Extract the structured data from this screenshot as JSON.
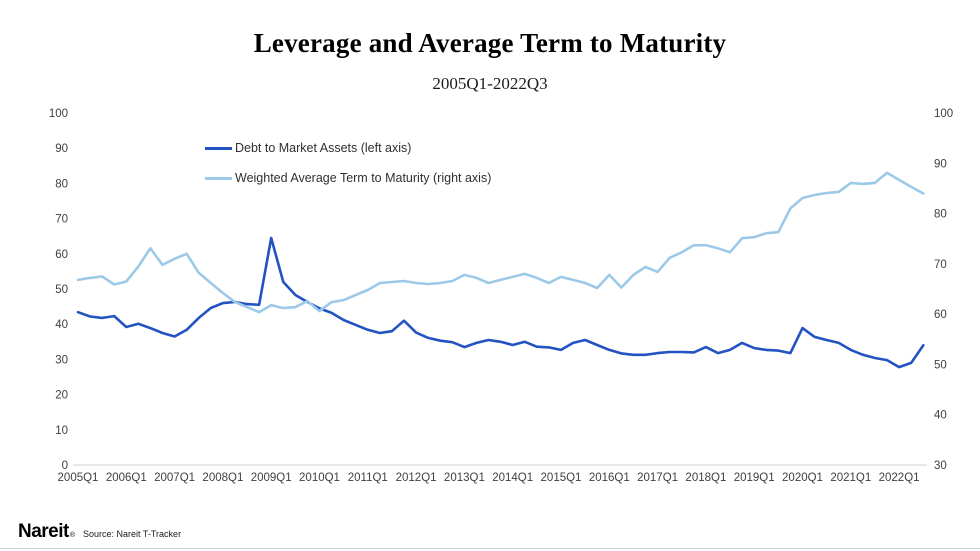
{
  "title": "Leverage and Average Term to Maturity",
  "subtitle": "2005Q1-2022Q3",
  "legend": [
    {
      "label": "Debt to Market Assets (left axis)",
      "color": "#2352C2"
    },
    {
      "label": "Weighted Average Term to Maturity (right axis)",
      "color": "#9DC9E8"
    }
  ],
  "footer": {
    "logo": "Nareit",
    "registered": "®",
    "source": "Source: Nareit T-Tracker"
  },
  "chart_data": {
    "type": "line",
    "frequency": "quarterly",
    "x_first": "2005Q1",
    "x_last": "2022Q3",
    "x_labels": [
      "2005Q1",
      "2006Q1",
      "2007Q1",
      "2008Q1",
      "2009Q1",
      "2010Q1",
      "2011Q1",
      "2012Q1",
      "2013Q1",
      "2014Q1",
      "2015Q1",
      "2016Q1",
      "2017Q1",
      "2018Q1",
      "2019Q1",
      "2020Q1",
      "2021Q1",
      "2022Q1"
    ],
    "left_axis": {
      "min": 0,
      "max": 100,
      "step": 10,
      "ticks": [
        0,
        10,
        20,
        30,
        40,
        50,
        60,
        70,
        80,
        90,
        100
      ]
    },
    "right_axis": {
      "min": 30,
      "max": 100,
      "step": 10,
      "ticks": [
        30,
        40,
        50,
        60,
        70,
        80,
        90,
        100
      ]
    },
    "grid": false,
    "legend_position": "top-left",
    "series": [
      {
        "name": "Debt to Market Assets",
        "axis": "left",
        "color": "#2352C2",
        "values": [
          43.4,
          42.2,
          41.8,
          42.3,
          39.2,
          40.1,
          38.9,
          37.5,
          36.5,
          38.4,
          41.8,
          44.6,
          46.0,
          46.3,
          45.7,
          45.5,
          64.5,
          52.0,
          48.3,
          46.3,
          44.5,
          43.2,
          41.2,
          39.8,
          38.4,
          37.5,
          38.0,
          41.0,
          37.6,
          36.1,
          35.3,
          34.9,
          33.5,
          34.7,
          35.5,
          35.0,
          34.1,
          35.0,
          33.6,
          33.4,
          32.7,
          34.7,
          35.5,
          34.1,
          32.7,
          31.7,
          31.3,
          31.3,
          31.8,
          32.1,
          32.1,
          32.0,
          33.5,
          31.8,
          32.7,
          34.7,
          33.2,
          32.7,
          32.5,
          31.8,
          38.9,
          36.4,
          35.5,
          34.7,
          32.7,
          31.3,
          30.4,
          29.8,
          27.8,
          29.0,
          34.0
        ]
      },
      {
        "name": "Weighted Average Term to Maturity",
        "axis": "right",
        "color": "#9DC9E8",
        "values": [
          66.8,
          67.2,
          67.5,
          65.9,
          66.5,
          69.5,
          73.1,
          69.8,
          71.0,
          72.0,
          68.2,
          66.2,
          64.2,
          62.4,
          61.4,
          60.4,
          61.8,
          61.2,
          61.4,
          62.6,
          60.6,
          62.4,
          62.8,
          63.8,
          64.8,
          66.2,
          66.4,
          66.6,
          66.2,
          66.0,
          66.2,
          66.6,
          67.8,
          67.2,
          66.2,
          66.8,
          67.4,
          68.0,
          67.2,
          66.2,
          67.4,
          66.8,
          66.2,
          65.2,
          67.8,
          65.3,
          67.8,
          69.4,
          68.4,
          71.2,
          72.3,
          73.7,
          73.7,
          73.1,
          72.3,
          75.1,
          75.3,
          76.1,
          76.3,
          81.0,
          83.1,
          83.7,
          84.1,
          84.3,
          86.1,
          85.9,
          86.1,
          88.1,
          86.7,
          85.3,
          84.0
        ]
      }
    ]
  }
}
